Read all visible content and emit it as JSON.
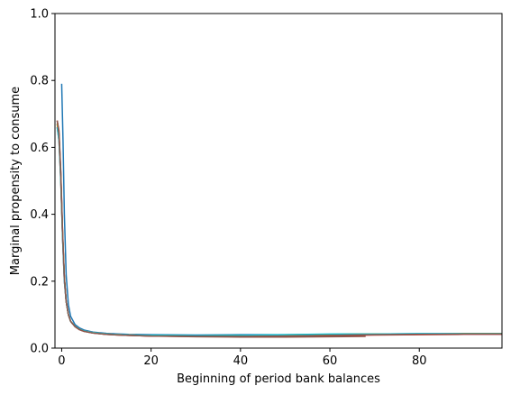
{
  "chart_data": {
    "type": "line",
    "title": "",
    "xlabel": "Beginning of period bank balances",
    "ylabel": "Marginal propensity to consume",
    "xlim": [
      -1.5,
      98.5
    ],
    "ylim": [
      0,
      1.0
    ],
    "xticks": [
      0,
      20,
      40,
      60,
      80
    ],
    "xtick_labels": [
      "0",
      "20",
      "40",
      "60",
      "80"
    ],
    "yticks": [
      0.0,
      0.2,
      0.4,
      0.6,
      0.8,
      1.0
    ],
    "ytick_labels": [
      "0.0",
      "0.2",
      "0.4",
      "0.6",
      "0.8",
      "1.0"
    ],
    "grid": false,
    "legend": "none",
    "series": [
      {
        "color": "#1f77b4",
        "x": [
          0,
          0.3,
          0.6,
          1,
          1.5,
          2,
          3,
          4,
          5,
          7,
          10,
          15,
          20,
          30,
          40,
          50,
          60,
          70,
          80,
          90,
          98.5
        ],
        "y": [
          0.79,
          0.62,
          0.4,
          0.22,
          0.13,
          0.095,
          0.07,
          0.06,
          0.054,
          0.048,
          0.044,
          0.041,
          0.04,
          0.039,
          0.04,
          0.04,
          0.041,
          0.042,
          0.043,
          0.043,
          0.043
        ]
      },
      {
        "color": "#ff7f0e",
        "x": [
          -1,
          -0.6,
          -0.2,
          0.2,
          0.6,
          1,
          1.5,
          2,
          3,
          4,
          5,
          7,
          10,
          15,
          20,
          30,
          40,
          50,
          60,
          70,
          80,
          90,
          98.5
        ],
        "y": [
          0.66,
          0.62,
          0.5,
          0.33,
          0.2,
          0.14,
          0.1,
          0.08,
          0.065,
          0.056,
          0.051,
          0.046,
          0.042,
          0.039,
          0.037,
          0.036,
          0.036,
          0.037,
          0.039,
          0.04,
          0.041,
          0.042,
          0.042
        ]
      },
      {
        "color": "#2ca02c",
        "x": [
          -1,
          -0.6,
          -0.2,
          0.2,
          0.6,
          1,
          1.5,
          2,
          3,
          4,
          5,
          7,
          10,
          15,
          20,
          30,
          40,
          50,
          60,
          70,
          80,
          90,
          98.5
        ],
        "y": [
          0.67,
          0.63,
          0.51,
          0.34,
          0.21,
          0.14,
          0.1,
          0.08,
          0.065,
          0.056,
          0.051,
          0.046,
          0.042,
          0.039,
          0.038,
          0.037,
          0.038,
          0.039,
          0.041,
          0.042,
          0.042,
          0.043,
          0.043
        ]
      },
      {
        "color": "#d62728",
        "x": [
          -1,
          -0.6,
          -0.2,
          0.2,
          0.6,
          1,
          1.5,
          2,
          3,
          4,
          5,
          7,
          10,
          15,
          20,
          30,
          40,
          50,
          60,
          70,
          80,
          90,
          98.5
        ],
        "y": [
          0.68,
          0.64,
          0.52,
          0.34,
          0.21,
          0.14,
          0.1,
          0.08,
          0.064,
          0.055,
          0.05,
          0.045,
          0.041,
          0.038,
          0.036,
          0.035,
          0.034,
          0.035,
          0.037,
          0.039,
          0.04,
          0.041,
          0.041
        ]
      },
      {
        "color": "#9467bd",
        "x": [
          -1,
          -0.6,
          -0.2,
          0.2,
          0.6,
          1,
          1.5,
          2,
          3,
          4,
          5,
          7,
          10,
          15,
          20,
          30,
          40,
          50,
          60,
          70,
          80,
          90,
          98.5
        ],
        "y": [
          0.67,
          0.63,
          0.51,
          0.33,
          0.2,
          0.14,
          0.1,
          0.08,
          0.065,
          0.056,
          0.051,
          0.046,
          0.042,
          0.039,
          0.037,
          0.036,
          0.036,
          0.037,
          0.039,
          0.041,
          0.042,
          0.042,
          0.042
        ]
      },
      {
        "color": "#8c564b",
        "x": [
          -1,
          -0.6,
          -0.2,
          0.2,
          0.6,
          1,
          1.5,
          2,
          3,
          4,
          5,
          7,
          10,
          15,
          20,
          30,
          40,
          50,
          60,
          68
        ],
        "y": [
          0.68,
          0.65,
          0.53,
          0.35,
          0.21,
          0.14,
          0.1,
          0.08,
          0.064,
          0.055,
          0.05,
          0.045,
          0.041,
          0.038,
          0.036,
          0.034,
          0.033,
          0.033,
          0.034,
          0.035
        ]
      },
      {
        "color": "#e377c2",
        "x": [
          -1,
          -0.6,
          -0.2,
          0.2,
          0.6,
          1,
          1.5,
          2,
          3,
          4,
          5,
          7,
          10,
          15,
          20,
          30,
          40,
          50,
          60,
          70,
          80,
          90,
          98.5
        ],
        "y": [
          0.66,
          0.62,
          0.5,
          0.33,
          0.2,
          0.14,
          0.1,
          0.08,
          0.065,
          0.056,
          0.051,
          0.046,
          0.042,
          0.039,
          0.037,
          0.036,
          0.037,
          0.038,
          0.04,
          0.041,
          0.042,
          0.042,
          0.042
        ]
      },
      {
        "color": "#7f7f7f",
        "x": [
          -1,
          -0.6,
          -0.2,
          0.2,
          0.6,
          1,
          1.5,
          2,
          3,
          4,
          5,
          7,
          10,
          15,
          20,
          30,
          40,
          50,
          60,
          70,
          80,
          90,
          98.5
        ],
        "y": [
          0.67,
          0.63,
          0.51,
          0.34,
          0.21,
          0.14,
          0.1,
          0.08,
          0.065,
          0.056,
          0.051,
          0.046,
          0.042,
          0.039,
          0.037,
          0.036,
          0.036,
          0.037,
          0.039,
          0.04,
          0.041,
          0.042,
          0.042
        ]
      },
      {
        "color": "#bcbd22",
        "x": [
          -1,
          -0.6,
          -0.2,
          0.2,
          0.6,
          1,
          1.5,
          2,
          3,
          4,
          5,
          7,
          10,
          15,
          20,
          30,
          40,
          50,
          60,
          70,
          80,
          90,
          98.5
        ],
        "y": [
          0.67,
          0.63,
          0.51,
          0.34,
          0.21,
          0.14,
          0.1,
          0.08,
          0.065,
          0.056,
          0.051,
          0.046,
          0.042,
          0.039,
          0.037,
          0.036,
          0.037,
          0.039,
          0.041,
          0.042,
          0.042,
          0.043,
          0.043
        ]
      },
      {
        "color": "#17becf",
        "x": [
          -1,
          -0.6,
          -0.2,
          0.2,
          0.6,
          1,
          1.5,
          2,
          3,
          4,
          5,
          7,
          10,
          15,
          20,
          30,
          40,
          50,
          60,
          70,
          80,
          90,
          98.5
        ],
        "y": [
          0.66,
          0.62,
          0.5,
          0.33,
          0.2,
          0.14,
          0.1,
          0.08,
          0.065,
          0.056,
          0.051,
          0.046,
          0.042,
          0.039,
          0.038,
          0.037,
          0.038,
          0.04,
          0.042,
          0.042,
          0.043,
          0.043,
          0.043
        ]
      },
      {
        "color": "#8c564b",
        "x": [
          -1,
          -0.6,
          -0.2,
          0.2,
          0.6,
          1,
          1.5,
          2,
          3,
          4,
          5,
          7,
          10,
          15,
          20,
          30,
          40,
          50,
          60,
          70,
          80,
          90,
          98.5
        ],
        "y": [
          0.68,
          0.64,
          0.52,
          0.35,
          0.21,
          0.14,
          0.1,
          0.08,
          0.064,
          0.055,
          0.05,
          0.045,
          0.041,
          0.038,
          0.036,
          0.035,
          0.035,
          0.036,
          0.038,
          0.04,
          0.041,
          0.042,
          0.042
        ]
      }
    ]
  }
}
